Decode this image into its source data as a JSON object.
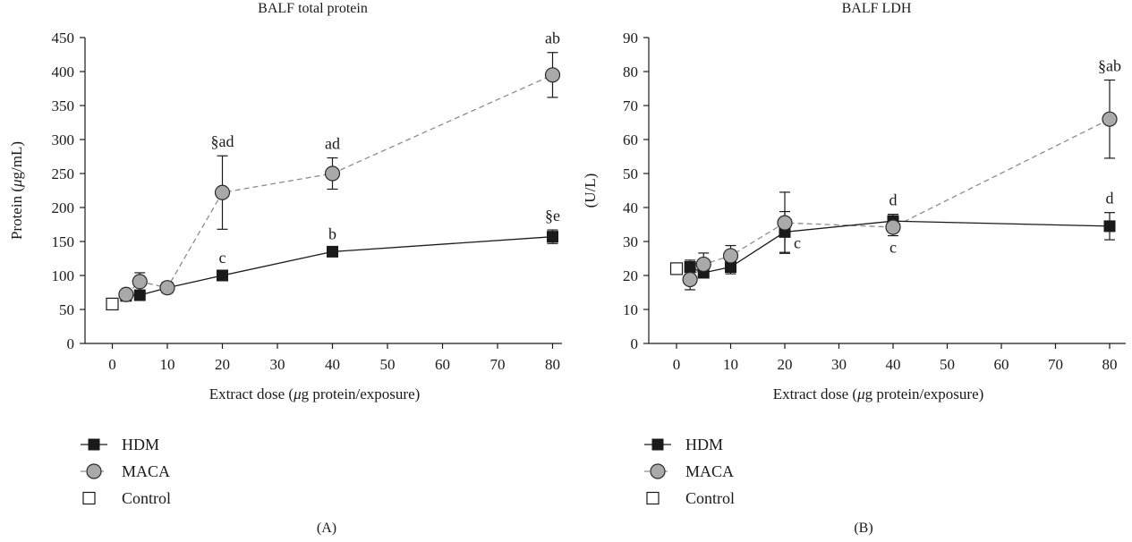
{
  "chart_data": [
    {
      "panel": "(A)",
      "type": "line",
      "title": "BALF total protein",
      "xlabel": "Extract dose (μg protein/exposure)",
      "ylabel": "Protein (μg/mL)",
      "x_ticks": [
        "0",
        "10",
        "20",
        "30",
        "40",
        "50",
        "60",
        "70",
        "80"
      ],
      "y_ticks": [
        "0",
        "50",
        "100",
        "150",
        "200",
        "250",
        "300",
        "350",
        "400",
        "450"
      ],
      "ylim": [
        0,
        450
      ],
      "grid": false,
      "legend_position": "bottom-left",
      "series": [
        {
          "name": "HDM",
          "marker": "filled-square",
          "line": "solid",
          "color": "#1a1a1a",
          "points": [
            {
              "x": 2.5,
              "y": 70,
              "err": 4
            },
            {
              "x": 5,
              "y": 71,
              "err": 4
            },
            {
              "x": 10,
              "y": 82,
              "err": 4
            },
            {
              "x": 20,
              "y": 100,
              "err": 5,
              "label": "c"
            },
            {
              "x": 40,
              "y": 135,
              "err": 5,
              "label": "b"
            },
            {
              "x": 80,
              "y": 157,
              "err": 10,
              "label": "§e"
            }
          ]
        },
        {
          "name": "MACA",
          "marker": "gray-circle",
          "line": "dashed",
          "color": "#a6a6a6",
          "points": [
            {
              "x": 2.5,
              "y": 72,
              "err": 5
            },
            {
              "x": 5,
              "y": 91,
              "err": 13
            },
            {
              "x": 10,
              "y": 82,
              "err": 4
            },
            {
              "x": 20,
              "y": 222,
              "err": 54,
              "label": "§ad"
            },
            {
              "x": 40,
              "y": 250,
              "err": 23,
              "label": "ad"
            },
            {
              "x": 80,
              "y": 395,
              "err": 33,
              "label": "ab"
            }
          ]
        },
        {
          "name": "Control",
          "marker": "open-square",
          "line": "none",
          "color": "#1a1a1a",
          "points": [
            {
              "x": 0,
              "y": 58,
              "err": 0
            }
          ]
        }
      ]
    },
    {
      "panel": "(B)",
      "type": "line",
      "title": "BALF LDH",
      "xlabel": "Extract dose (μg protein/exposure)",
      "ylabel": "(U/L)",
      "x_ticks": [
        "0",
        "10",
        "20",
        "30",
        "40",
        "50",
        "60",
        "70",
        "80"
      ],
      "y_ticks": [
        "0",
        "10",
        "20",
        "30",
        "40",
        "50",
        "60",
        "70",
        "80",
        "90"
      ],
      "ylim": [
        0,
        90
      ],
      "grid": false,
      "legend_position": "bottom-left",
      "series": [
        {
          "name": "HDM",
          "marker": "filled-square",
          "line": "solid",
          "color": "#1a1a1a",
          "points": [
            {
              "x": 2.5,
              "y": 22.5,
              "err": 2
            },
            {
              "x": 5,
              "y": 20.8,
              "err": 1.5
            },
            {
              "x": 10,
              "y": 22.5,
              "err": 2
            },
            {
              "x": 20,
              "y": 32.8,
              "err": 6,
              "label": "c",
              "label_pos": "right"
            },
            {
              "x": 40,
              "y": 36,
              "err": 2,
              "label": "d"
            },
            {
              "x": 80,
              "y": 34.5,
              "err": 4,
              "label": "d"
            }
          ]
        },
        {
          "name": "MACA",
          "marker": "gray-circle",
          "line": "dashed",
          "color": "#a6a6a6",
          "points": [
            {
              "x": 2.5,
              "y": 18.8,
              "err": 3
            },
            {
              "x": 5,
              "y": 23.3,
              "err": 3.3
            },
            {
              "x": 10,
              "y": 25.8,
              "err": 3
            },
            {
              "x": 20,
              "y": 35.5,
              "err": 9
            },
            {
              "x": 40,
              "y": 34.2,
              "err": 2.5,
              "label": "c",
              "label_pos": "below"
            },
            {
              "x": 80,
              "y": 66,
              "err": 11.5,
              "label": "§ab"
            }
          ]
        },
        {
          "name": "Control",
          "marker": "open-square",
          "line": "none",
          "color": "#1a1a1a",
          "points": [
            {
              "x": 0,
              "y": 22,
              "err": 0
            }
          ]
        }
      ]
    }
  ]
}
